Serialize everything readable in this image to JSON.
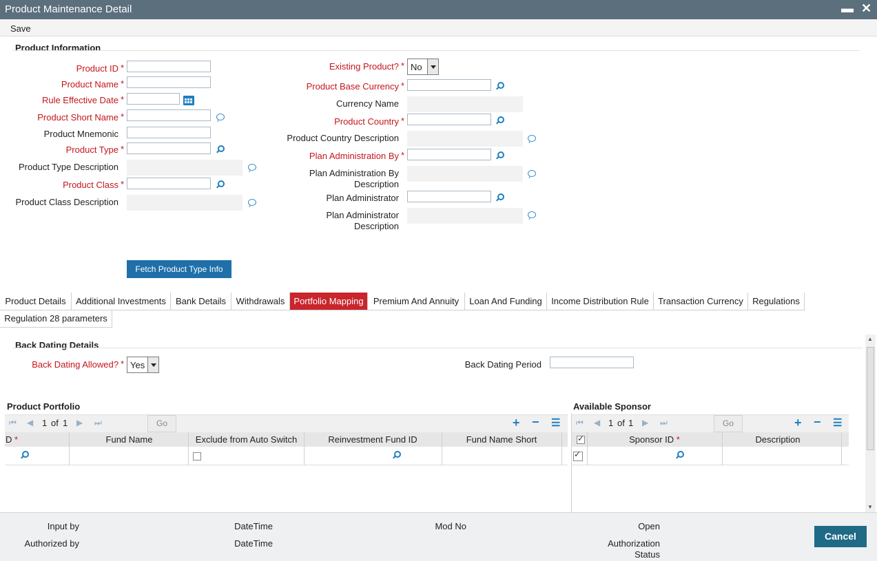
{
  "window": {
    "title": "Product Maintenance Detail",
    "minimize": "▬",
    "close": "✕"
  },
  "menu": {
    "save": "Save"
  },
  "product_information": {
    "title": "Product Information",
    "product_id": "Product ID",
    "product_name": "Product Name",
    "rule_effective_date": "Rule Effective Date",
    "product_short_name": "Product Short Name",
    "product_mnemonic": "Product Mnemonic",
    "product_type": "Product Type",
    "product_type_description": "Product Type Description",
    "product_class": "Product Class",
    "product_class_description": "Product Class Description",
    "existing_product": "Existing Product?",
    "existing_product_value": "No",
    "product_base_currency": "Product Base Currency",
    "currency_name": "Currency Name",
    "product_country": "Product Country",
    "product_country_description": "Product Country Description",
    "plan_administration_by": "Plan Administration By",
    "plan_administration_by_description_l1": "Plan Administration By",
    "plan_administration_by_description_l2": "Description",
    "plan_administrator": "Plan Administrator",
    "plan_administrator_description_l1": "Plan Administrator",
    "plan_administrator_description_l2": "Description",
    "required_mark": "*",
    "fetch_button": "Fetch Product Type Info"
  },
  "tabs": [
    "Product Details",
    "Additional Investments",
    "Bank Details",
    "Withdrawals",
    "Portfolio Mapping",
    "Premium And Annuity",
    "Loan And Funding",
    "Income Distribution Rule",
    "Transaction Currency",
    "Regulations",
    "Regulation 28 parameters"
  ],
  "active_tab": "Portfolio Mapping",
  "back_dating": {
    "title": "Back Dating Details",
    "allowed_label": "Back Dating Allowed?",
    "allowed_value": "Yes",
    "period_label": "Back Dating Period"
  },
  "product_portfolio": {
    "title": "Product Portfolio",
    "page": "1",
    "of": "of",
    "total": "1",
    "go": "Go",
    "columns": [
      "D",
      "Fund Name",
      "Exclude from Auto Switch",
      "Reinvestment Fund ID",
      "Fund Name Short"
    ]
  },
  "available_sponsor": {
    "title": "Available Sponsor",
    "page": "1",
    "of": "of",
    "total": "1",
    "go": "Go",
    "columns": [
      "Sponsor ID",
      "Description"
    ]
  },
  "footer": {
    "input_by": "Input by",
    "authorized_by": "Authorized by",
    "datetime1": "DateTime",
    "datetime2": "DateTime",
    "mod_no": "Mod No",
    "open": "Open",
    "authorization_l1": "Authorization",
    "authorization_l2": "Status",
    "cancel": "Cancel"
  }
}
